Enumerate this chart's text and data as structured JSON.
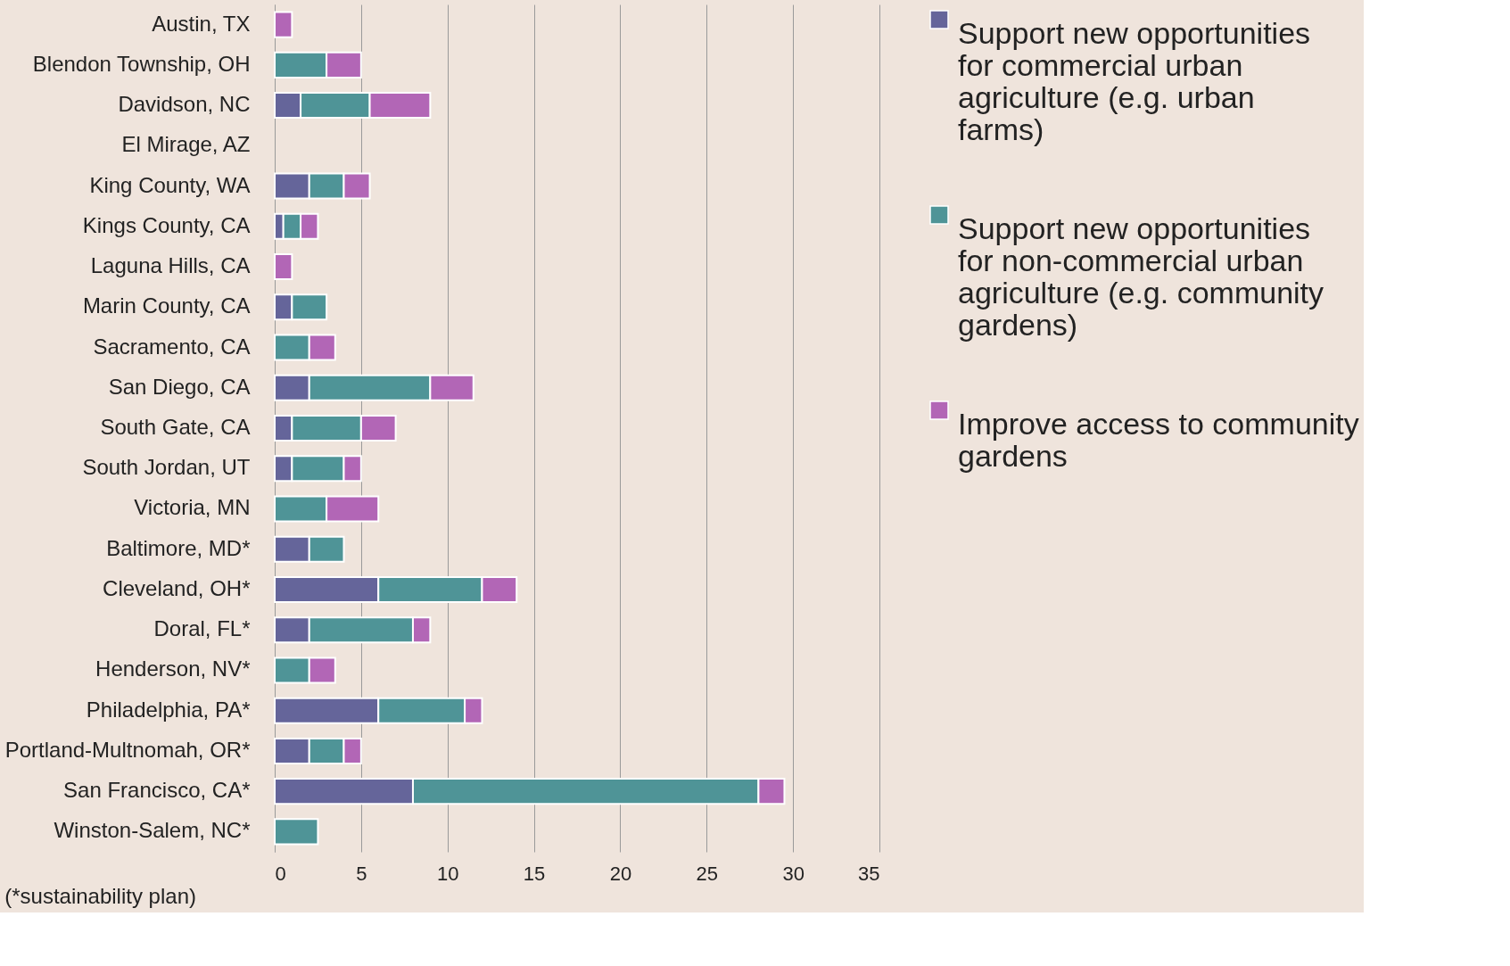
{
  "chart_data": {
    "type": "bar",
    "orientation": "horizontal",
    "stacked": true,
    "categories": [
      "Austin, TX",
      "Blendon Township, OH",
      "Davidson, NC",
      "El Mirage, AZ",
      "King County, WA",
      "Kings County, CA",
      "Laguna Hills, CA",
      "Marin County, CA",
      "Sacramento, CA",
      "San Diego, CA",
      "South Gate, CA",
      "South Jordan, UT",
      "Victoria, MN",
      "Baltimore, MD*",
      "Cleveland, OH*",
      "Doral, FL*",
      "Henderson, NV*",
      "Philadelphia, PA*",
      "Portland-Multnomah, OR*",
      "San Francisco, CA*",
      "Winston-Salem, NC*"
    ],
    "series": [
      {
        "name": "Support new opportunities for commercial urban agriculture (e.g. urban farms)",
        "color": "#65659a",
        "values": [
          null,
          null,
          1.5,
          null,
          2,
          0.5,
          null,
          1,
          null,
          2,
          1,
          1,
          null,
          2,
          6,
          2,
          null,
          6,
          2,
          8,
          null
        ]
      },
      {
        "name": "Support new opportunities for non-commercial urban agriculture (e.g. community gardens)",
        "color": "#4f9497",
        "values": [
          null,
          3,
          4,
          null,
          2,
          1,
          null,
          2,
          2,
          7,
          4,
          3,
          3,
          2,
          6,
          6,
          2,
          5,
          2,
          20,
          2.5
        ]
      },
      {
        "name": "Improve access to community gardens",
        "color": "#b266b6",
        "values": [
          1,
          2,
          3.5,
          null,
          1.5,
          1,
          1,
          null,
          1.5,
          2.5,
          2,
          1,
          3,
          null,
          2,
          1,
          1.5,
          1,
          1,
          1.5,
          null
        ]
      }
    ],
    "xlim": [
      0,
      35
    ],
    "xticks": [
      0,
      5,
      10,
      15,
      20,
      25,
      30,
      35
    ],
    "grid": "x",
    "legend": "right",
    "annotations": [
      "(*sustainability plan)"
    ]
  }
}
